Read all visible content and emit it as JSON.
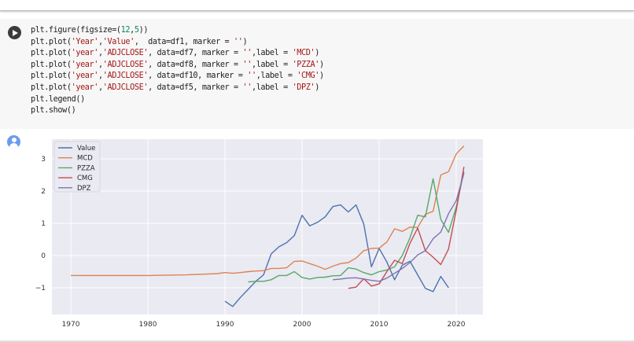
{
  "cell": {
    "run_button_label": "Run cell",
    "code_lines": [
      [
        {
          "t": "plt.figure(figsize=("
        },
        {
          "t": "12",
          "c": "n"
        },
        {
          "t": ","
        },
        {
          "t": "5",
          "c": "n"
        },
        {
          "t": "))"
        }
      ],
      [
        {
          "t": "plt.plot("
        },
        {
          "t": "'Year'",
          "c": "s"
        },
        {
          "t": ","
        },
        {
          "t": "'Value'",
          "c": "s"
        },
        {
          "t": ",  data=df1, marker = "
        },
        {
          "t": "''",
          "c": "s"
        },
        {
          "t": ")"
        }
      ],
      [
        {
          "t": "plt.plot("
        },
        {
          "t": "'year'",
          "c": "s"
        },
        {
          "t": ","
        },
        {
          "t": "'ADJCLOSE'",
          "c": "s"
        },
        {
          "t": ", data=df7, marker = "
        },
        {
          "t": "''",
          "c": "s"
        },
        {
          "t": ",label = "
        },
        {
          "t": "'MCD'",
          "c": "s"
        },
        {
          "t": ")"
        }
      ],
      [
        {
          "t": "plt.plot("
        },
        {
          "t": "'year'",
          "c": "s"
        },
        {
          "t": ","
        },
        {
          "t": "'ADJCLOSE'",
          "c": "s"
        },
        {
          "t": ", data=df8, marker = "
        },
        {
          "t": "''",
          "c": "s"
        },
        {
          "t": ",label = "
        },
        {
          "t": "'PZZA'",
          "c": "s"
        },
        {
          "t": ")"
        }
      ],
      [
        {
          "t": "plt.plot("
        },
        {
          "t": "'year'",
          "c": "s"
        },
        {
          "t": ","
        },
        {
          "t": "'ADJCLOSE'",
          "c": "s"
        },
        {
          "t": ", data=df10, marker = "
        },
        {
          "t": "''",
          "c": "s"
        },
        {
          "t": ",label = "
        },
        {
          "t": "'CMG'",
          "c": "s"
        },
        {
          "t": ")"
        }
      ],
      [
        {
          "t": "plt.plot("
        },
        {
          "t": "'year'",
          "c": "s"
        },
        {
          "t": ","
        },
        {
          "t": "'ADJCLOSE'",
          "c": "s"
        },
        {
          "t": ", data=df5, marker = "
        },
        {
          "t": "''",
          "c": "s"
        },
        {
          "t": ",label = "
        },
        {
          "t": "'DPZ'",
          "c": "s"
        },
        {
          "t": ")"
        }
      ],
      [
        {
          "t": "plt.legend()"
        }
      ],
      [
        {
          "t": "plt.show()"
        }
      ]
    ]
  },
  "chart_data": {
    "type": "line",
    "title": "",
    "xlabel": "",
    "ylabel": "",
    "xlim": [
      1967.6,
      2023.6
    ],
    "ylim": [
      -1.85,
      3.6
    ],
    "xticks": [
      1970,
      1980,
      1990,
      2000,
      2010,
      2020
    ],
    "yticks": [
      -1,
      0,
      1,
      2,
      3
    ],
    "grid": true,
    "legend_position": "upper left",
    "series": [
      {
        "name": "Value",
        "color": "#4c72b0",
        "x": [
          1990,
          1991,
          1992,
          1993,
          1994,
          1995,
          1996,
          1997,
          1998,
          1999,
          2000,
          2001,
          2002,
          2003,
          2004,
          2005,
          2006,
          2007,
          2008,
          2009,
          2010,
          2011,
          2012,
          2013,
          2014,
          2015,
          2016,
          2017,
          2018,
          2019
        ],
        "y": [
          -1.42,
          -1.58,
          -1.3,
          -1.05,
          -0.8,
          -0.6,
          0.05,
          0.27,
          0.4,
          0.62,
          1.25,
          0.92,
          1.03,
          1.2,
          1.52,
          1.57,
          1.35,
          1.57,
          0.98,
          -0.35,
          0.22,
          -0.2,
          -0.75,
          -0.3,
          -0.18,
          -0.6,
          -1.02,
          -1.12,
          -0.65,
          -1.0
        ]
      },
      {
        "name": "MCD",
        "color": "#dd8452",
        "x": [
          1970,
          1975,
          1980,
          1985,
          1989,
          1990,
          1991,
          1992,
          1993,
          1994,
          1995,
          1996,
          1997,
          1998,
          1999,
          2000,
          2001,
          2002,
          2003,
          2004,
          2005,
          2006,
          2007,
          2008,
          2009,
          2010,
          2011,
          2012,
          2013,
          2014,
          2015,
          2016,
          2017,
          2018,
          2019,
          2020,
          2021
        ],
        "y": [
          -0.62,
          -0.62,
          -0.62,
          -0.6,
          -0.56,
          -0.53,
          -0.55,
          -0.53,
          -0.5,
          -0.48,
          -0.47,
          -0.4,
          -0.4,
          -0.38,
          -0.18,
          -0.17,
          -0.25,
          -0.33,
          -0.43,
          -0.33,
          -0.25,
          -0.22,
          -0.08,
          0.15,
          0.22,
          0.23,
          0.42,
          0.83,
          0.75,
          0.88,
          0.87,
          1.28,
          1.37,
          2.5,
          2.6,
          3.15,
          3.4
        ]
      },
      {
        "name": "PZZA",
        "color": "#55a868",
        "x": [
          1993,
          1994,
          1995,
          1996,
          1997,
          1998,
          1999,
          2000,
          2001,
          2002,
          2003,
          2004,
          2005,
          2006,
          2007,
          2008,
          2009,
          2010,
          2011,
          2012,
          2013,
          2014,
          2015,
          2016,
          2017,
          2018,
          2019,
          2020,
          2021
        ],
        "y": [
          -0.82,
          -0.8,
          -0.8,
          -0.75,
          -0.62,
          -0.62,
          -0.5,
          -0.68,
          -0.73,
          -0.68,
          -0.67,
          -0.63,
          -0.62,
          -0.38,
          -0.42,
          -0.53,
          -0.6,
          -0.5,
          -0.45,
          -0.35,
          0.0,
          0.55,
          1.25,
          1.2,
          2.38,
          1.12,
          0.72,
          1.5,
          2.6
        ]
      },
      {
        "name": "CMG",
        "color": "#c44e52",
        "x": [
          2006,
          2007,
          2008,
          2009,
          2010,
          2011,
          2012,
          2013,
          2014,
          2015,
          2016,
          2017,
          2018,
          2019,
          2020,
          2021
        ],
        "y": [
          -1.02,
          -0.98,
          -0.72,
          -0.95,
          -0.88,
          -0.5,
          -0.15,
          -0.25,
          0.38,
          0.85,
          0.15,
          -0.05,
          -0.28,
          0.2,
          1.4,
          2.75
        ]
      },
      {
        "name": "DPZ",
        "color": "#8172b3",
        "x": [
          2004,
          2005,
          2006,
          2007,
          2008,
          2009,
          2010,
          2011,
          2012,
          2013,
          2014,
          2015,
          2016,
          2017,
          2018,
          2019,
          2020,
          2021
        ],
        "y": [
          -0.75,
          -0.73,
          -0.7,
          -0.69,
          -0.73,
          -0.77,
          -0.8,
          -0.7,
          -0.55,
          -0.4,
          -0.22,
          0.02,
          0.15,
          0.52,
          0.73,
          1.3,
          1.7,
          2.55
        ]
      }
    ]
  },
  "chart_colors": {
    "background": "#eaeaf2",
    "grid": "#ffffff"
  }
}
